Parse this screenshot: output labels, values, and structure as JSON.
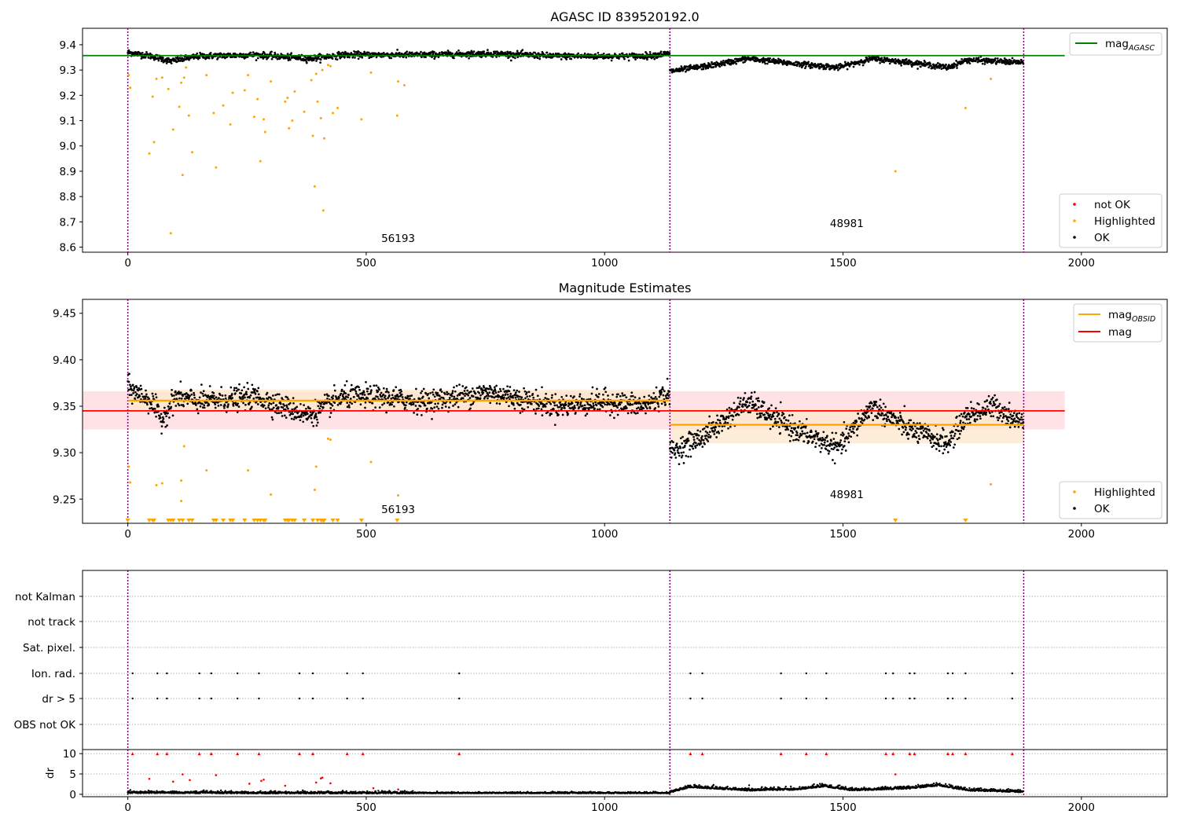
{
  "colors": {
    "ok": "#000000",
    "highlighted": "#ffa500",
    "not_ok": "#ff0000",
    "agasc_line": "#008000",
    "mag_line": "#ff0000",
    "obsid_line": "#ffa500",
    "obs_boundary": "#800080",
    "mag_band": "#ffd8dc",
    "obsid_band": "#fde7cc",
    "grid": "#b0b0b0"
  },
  "chart_data": [
    {
      "id": "agasc",
      "type": "scatter",
      "title": "AGASC ID 839520192.0",
      "xlim": [
        -95,
        2180
      ],
      "ylim": [
        8.58,
        9.465
      ],
      "xticks": [
        0,
        500,
        1000,
        1500,
        2000
      ],
      "yticks": [
        8.6,
        8.7,
        8.8,
        8.9,
        9.0,
        9.1,
        9.2,
        9.3,
        9.4
      ],
      "ytick_labels": [
        "8.6",
        "8.7",
        "8.8",
        "8.9",
        "9.0",
        "9.1",
        "9.2",
        "9.3",
        "9.4"
      ],
      "obs_boundaries": [
        0,
        1137,
        1879
      ],
      "obs_labels": [
        {
          "text": "56193",
          "x": 567,
          "y": 8.62
        },
        {
          "text": "48981",
          "x": 1508,
          "y": 8.68
        }
      ],
      "hlines": [
        {
          "name": "mag_agasc",
          "y": 9.357,
          "x0": -95,
          "x1": 1965
        }
      ],
      "legend_lines": [
        {
          "main": "mag",
          "sub": "AGASC",
          "color": "agasc_line"
        }
      ],
      "legend_points": [
        {
          "label": "not OK",
          "color": "not_ok"
        },
        {
          "label": "Highlighted",
          "color": "highlighted"
        },
        {
          "label": "OK",
          "color": "ok"
        }
      ],
      "ok_segments": [
        {
          "x0": 0,
          "x1": 1137,
          "knots": [
            [
              0,
              9.37
            ],
            [
              50,
              9.355
            ],
            [
              90,
              9.335
            ],
            [
              150,
              9.355
            ],
            [
              270,
              9.36
            ],
            [
              380,
              9.345
            ],
            [
              450,
              9.36
            ],
            [
              520,
              9.36
            ],
            [
              620,
              9.36
            ],
            [
              760,
              9.365
            ],
            [
              900,
              9.355
            ],
            [
              1000,
              9.355
            ],
            [
              1080,
              9.355
            ],
            [
              1137,
              9.365
            ]
          ],
          "noise": 0.011
        },
        {
          "x0": 1137,
          "x1": 1879,
          "knots": [
            [
              1137,
              9.295
            ],
            [
              1230,
              9.32
            ],
            [
              1300,
              9.345
            ],
            [
              1400,
              9.325
            ],
            [
              1490,
              9.31
            ],
            [
              1560,
              9.345
            ],
            [
              1640,
              9.33
            ],
            [
              1720,
              9.31
            ],
            [
              1760,
              9.34
            ],
            [
              1879,
              9.33
            ]
          ],
          "noise": 0.01
        }
      ],
      "highlighted": [
        [
          2,
          9.28
        ],
        [
          5,
          9.23
        ],
        [
          45,
          8.97
        ],
        [
          52,
          9.195
        ],
        [
          55,
          9.015
        ],
        [
          60,
          9.265
        ],
        [
          72,
          9.27
        ],
        [
          85,
          9.225
        ],
        [
          90,
          8.655
        ],
        [
          95,
          9.065
        ],
        [
          108,
          9.155
        ],
        [
          112,
          9.25
        ],
        [
          115,
          8.885
        ],
        [
          118,
          9.27
        ],
        [
          122,
          9.31
        ],
        [
          128,
          9.12
        ],
        [
          135,
          8.975
        ],
        [
          165,
          9.28
        ],
        [
          180,
          9.13
        ],
        [
          185,
          8.915
        ],
        [
          200,
          9.16
        ],
        [
          215,
          9.085
        ],
        [
          220,
          9.21
        ],
        [
          245,
          9.22
        ],
        [
          252,
          9.28
        ],
        [
          265,
          9.115
        ],
        [
          272,
          9.185
        ],
        [
          278,
          8.94
        ],
        [
          285,
          9.105
        ],
        [
          288,
          9.055
        ],
        [
          300,
          9.255
        ],
        [
          330,
          9.175
        ],
        [
          335,
          9.19
        ],
        [
          338,
          9.07
        ],
        [
          345,
          9.1
        ],
        [
          350,
          9.215
        ],
        [
          370,
          9.135
        ],
        [
          385,
          9.26
        ],
        [
          388,
          9.04
        ],
        [
          392,
          8.84
        ],
        [
          395,
          9.285
        ],
        [
          398,
          9.175
        ],
        [
          405,
          9.11
        ],
        [
          408,
          9.3
        ],
        [
          410,
          8.745
        ],
        [
          412,
          9.03
        ],
        [
          420,
          9.32
        ],
        [
          425,
          9.315
        ],
        [
          430,
          9.13
        ],
        [
          440,
          9.15
        ],
        [
          490,
          9.105
        ],
        [
          510,
          9.29
        ],
        [
          565,
          9.12
        ],
        [
          567,
          9.255
        ],
        [
          580,
          9.24
        ],
        [
          1610,
          8.9
        ],
        [
          1757,
          9.15
        ],
        [
          1810,
          9.265
        ]
      ]
    },
    {
      "id": "estimates",
      "type": "scatter",
      "title": "Magnitude Estimates",
      "xlim": [
        -95,
        2180
      ],
      "ylim": [
        9.224,
        9.465
      ],
      "xticks": [
        0,
        500,
        1000,
        1500,
        2000
      ],
      "yticks": [
        9.25,
        9.3,
        9.35,
        9.4,
        9.45
      ],
      "ytick_labels": [
        "9.25",
        "9.30",
        "9.35",
        "9.40",
        "9.45"
      ],
      "obs_boundaries": [
        0,
        1137,
        1879
      ],
      "obs_labels": [
        {
          "text": "56193",
          "x": 567,
          "y": 9.235
        },
        {
          "text": "48981",
          "x": 1508,
          "y": 9.251
        }
      ],
      "bands": [
        {
          "y0": 9.325,
          "y1": 9.366,
          "x0": -95,
          "x1": 1965,
          "color": "mag_band"
        },
        {
          "y0": 9.345,
          "y1": 9.368,
          "x0": 0,
          "x1": 1137,
          "color": "obsid_band"
        },
        {
          "y0": 9.31,
          "y1": 9.348,
          "x0": 1137,
          "x1": 1879,
          "color": "obsid_band"
        }
      ],
      "hlines": [
        {
          "name": "mag",
          "y": 9.345,
          "x0": -95,
          "x1": 1965,
          "color": "mag_line"
        },
        {
          "name": "mag_obsid_1",
          "y": 9.356,
          "x0": 0,
          "x1": 1137,
          "color": "obsid_line"
        },
        {
          "name": "mag_obsid_2",
          "y": 9.33,
          "x0": 1137,
          "x1": 1879,
          "color": "obsid_line"
        }
      ],
      "legend_lines": [
        {
          "main": "mag",
          "sub": "OBSID",
          "color": "obsid_line"
        },
        {
          "main": "mag",
          "sub": "",
          "color": "mag_line"
        }
      ],
      "legend_points": [
        {
          "label": "Highlighted",
          "color": "highlighted"
        },
        {
          "label": "OK",
          "color": "ok"
        }
      ],
      "ok_segments": [
        {
          "x0": 0,
          "x1": 1137,
          "knots": [
            [
              0,
              9.37
            ],
            [
              50,
              9.355
            ],
            [
              70,
              9.335
            ],
            [
              100,
              9.36
            ],
            [
              150,
              9.355
            ],
            [
              270,
              9.36
            ],
            [
              380,
              9.34
            ],
            [
              450,
              9.36
            ],
            [
              520,
              9.36
            ],
            [
              620,
              9.355
            ],
            [
              760,
              9.365
            ],
            [
              900,
              9.35
            ],
            [
              1000,
              9.355
            ],
            [
              1080,
              9.35
            ],
            [
              1137,
              9.365
            ]
          ],
          "noise": 0.011
        },
        {
          "x0": 1137,
          "x1": 1879,
          "knots": [
            [
              1137,
              9.3
            ],
            [
              1200,
              9.315
            ],
            [
              1240,
              9.33
            ],
            [
              1300,
              9.355
            ],
            [
              1360,
              9.335
            ],
            [
              1420,
              9.32
            ],
            [
              1490,
              9.305
            ],
            [
              1560,
              9.35
            ],
            [
              1640,
              9.325
            ],
            [
              1720,
              9.31
            ],
            [
              1760,
              9.34
            ],
            [
              1820,
              9.35
            ],
            [
              1879,
              9.33
            ]
          ],
          "noise": 0.011
        }
      ],
      "highlighted": [
        [
          2,
          9.285
        ],
        [
          5,
          9.268
        ],
        [
          60,
          9.265
        ],
        [
          72,
          9.267
        ],
        [
          112,
          9.27
        ],
        [
          112,
          9.248
        ],
        [
          118,
          9.307
        ],
        [
          165,
          9.281
        ],
        [
          252,
          9.281
        ],
        [
          300,
          9.255
        ],
        [
          395,
          9.285
        ],
        [
          392,
          9.26
        ],
        [
          420,
          9.315
        ],
        [
          425,
          9.314
        ],
        [
          510,
          9.29
        ],
        [
          567,
          9.254
        ],
        [
          1810,
          9.266
        ]
      ],
      "clipped": [
        0,
        45,
        52,
        55,
        85,
        90,
        95,
        108,
        115,
        128,
        135,
        180,
        185,
        200,
        215,
        220,
        245,
        265,
        272,
        278,
        285,
        288,
        330,
        335,
        338,
        345,
        350,
        370,
        388,
        398,
        405,
        408,
        410,
        412,
        430,
        440,
        490,
        565,
        1610,
        1757
      ]
    },
    {
      "id": "flags",
      "type": "scatter",
      "title": "",
      "xlim": [
        -95,
        2180
      ],
      "categories": [
        "not Kalman",
        "not track",
        "Sat. pixel.",
        "Ion. rad.",
        "dr > 5",
        "OBS not OK"
      ],
      "obs_boundaries": [
        0,
        1137,
        1879
      ],
      "flag_x": [
        10,
        62,
        82,
        150,
        175,
        230,
        275,
        360,
        388,
        460,
        493,
        695,
        1180,
        1205,
        1370,
        1423,
        1465,
        1590,
        1605,
        1640,
        1650,
        1720,
        1730,
        1757,
        1855
      ]
    },
    {
      "id": "dr",
      "type": "scatter",
      "title": "",
      "ylabel": "dr",
      "xlim": [
        -95,
        2180
      ],
      "ylim": [
        -0.6,
        11
      ],
      "xticks": [
        0,
        500,
        1000,
        1500,
        2000
      ],
      "yticks": [
        0,
        5,
        10
      ],
      "ytick_labels": [
        "0",
        "5",
        "10"
      ],
      "obs_boundaries": [
        0,
        1137,
        1879
      ],
      "segments": [
        {
          "x0": 0,
          "x1": 600,
          "knots": [
            [
              0,
              0.4
            ],
            [
              300,
              0.3
            ],
            [
              600,
              0.3
            ]
          ],
          "noise": 0.35
        },
        {
          "x0": 600,
          "x1": 1137,
          "knots": [
            [
              600,
              0.3
            ],
            [
              1137,
              0.3
            ]
          ],
          "noise": 0.2
        },
        {
          "x0": 1137,
          "x1": 1879,
          "knots": [
            [
              1137,
              0.5
            ],
            [
              1180,
              1.8
            ],
            [
              1300,
              1.0
            ],
            [
              1400,
              1.2
            ],
            [
              1460,
              2.0
            ],
            [
              1520,
              1.0
            ],
            [
              1640,
              1.5
            ],
            [
              1700,
              2.2
            ],
            [
              1760,
              1.0
            ],
            [
              1879,
              0.6
            ]
          ],
          "noise": 0.45
        }
      ],
      "scatter": [
        [
          45,
          3.8
        ],
        [
          95,
          3.1
        ],
        [
          115,
          4.9
        ],
        [
          130,
          3.5
        ],
        [
          185,
          4.7
        ],
        [
          255,
          2.6
        ],
        [
          280,
          3.3
        ],
        [
          285,
          3.6
        ],
        [
          330,
          2.1
        ],
        [
          395,
          2.9
        ],
        [
          405,
          3.9
        ],
        [
          408,
          4.1
        ],
        [
          425,
          2.7
        ],
        [
          515,
          1.5
        ],
        [
          567,
          1.2
        ],
        [
          1610,
          4.9
        ]
      ],
      "flag_x": [
        10,
        62,
        82,
        150,
        175,
        230,
        275,
        360,
        388,
        460,
        493,
        695,
        1180,
        1205,
        1370,
        1423,
        1465,
        1590,
        1605,
        1640,
        1650,
        1720,
        1730,
        1757,
        1855
      ]
    }
  ]
}
